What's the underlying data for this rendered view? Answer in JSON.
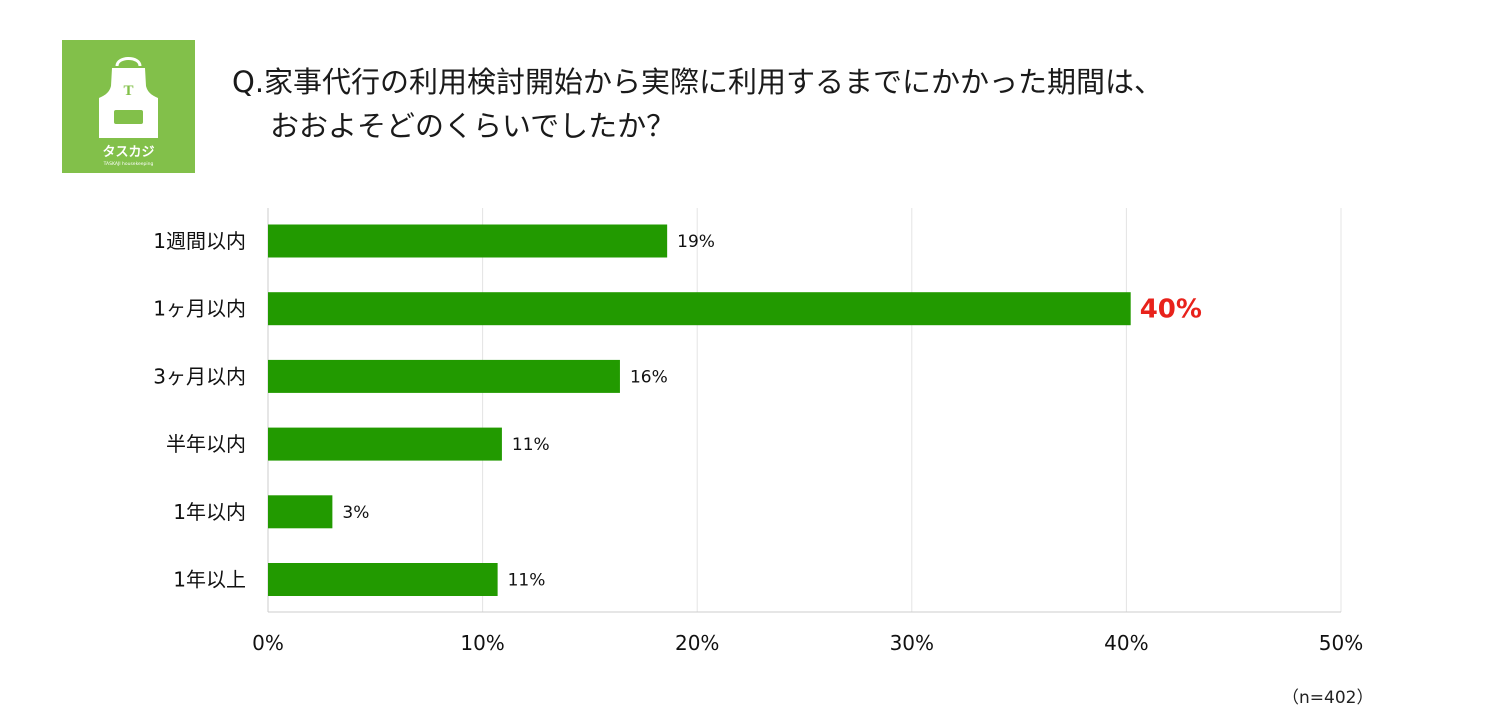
{
  "title": {
    "line1": "Q.家事代行の利用検討開始から実際に利用するまでにかかった期間は、",
    "line2": "おおよそどのくらいでしたか？"
  },
  "logo": {
    "brand": "タスカジ",
    "sub": "TASKAJI housekeeping",
    "letter": "T",
    "color": "#82c04a"
  },
  "sample_note": "（n=402）",
  "colors": {
    "bar": "#229a00",
    "highlight_label": "#e8221b",
    "grid": "#e4e4e4",
    "axis": "#cccccc"
  },
  "chart_data": {
    "type": "bar",
    "orientation": "horizontal",
    "categories": [
      "1週間以内",
      "1ヶ月以内",
      "3ヶ月以内",
      "半年以内",
      "1年以内",
      "1年以上"
    ],
    "values": [
      18.6,
      40.2,
      16.4,
      10.9,
      3.0,
      10.7
    ],
    "data_labels": [
      "19%",
      "40%",
      "16%",
      "11%",
      "3%",
      "11%"
    ],
    "highlight_index": 1,
    "xlim": [
      0,
      50
    ],
    "xticks": [
      0,
      10,
      20,
      30,
      40,
      50
    ],
    "xtick_labels": [
      "0%",
      "10%",
      "20%",
      "30%",
      "40%",
      "50%"
    ],
    "grid": true,
    "legend": "none"
  }
}
